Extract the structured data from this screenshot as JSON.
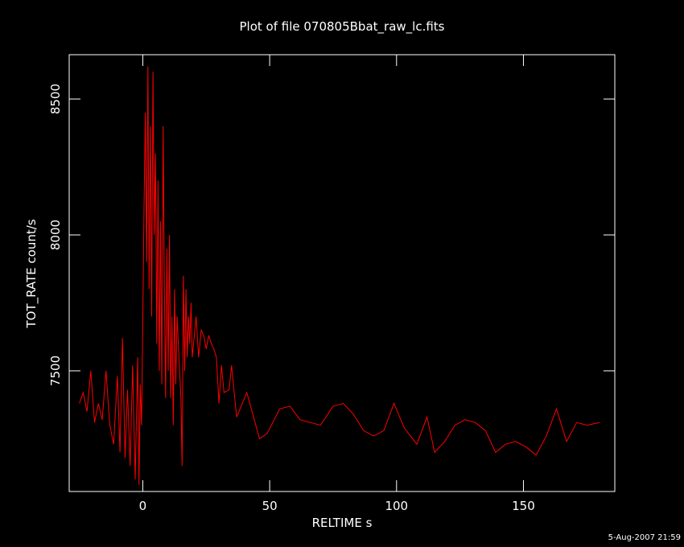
{
  "chart_data": {
    "type": "line",
    "title": "Plot of file 070805Bbat_raw_lc.fits",
    "x_label": "RELTIME  s",
    "y_label": "TOT_RATE  count/s",
    "footer": "5-Aug-2007 21:59",
    "background": "#000000",
    "axis_color": "#ffffff",
    "xlim": [
      -29,
      186
    ],
    "xticks": [
      0,
      50,
      100,
      150
    ],
    "ylim": [
      7056,
      8663
    ],
    "yticks": [
      7500,
      8000,
      8500
    ],
    "x": [
      -25,
      -23.5,
      -22,
      -20.5,
      -19,
      -17.5,
      -16,
      -14.5,
      -13,
      -11.5,
      -10,
      -9,
      -8,
      -7,
      -6,
      -5,
      -4,
      -3,
      -2,
      -1.5,
      -1,
      -0.5,
      0,
      0.5,
      1,
      1.5,
      2,
      2.5,
      3,
      3.5,
      4,
      4.5,
      5,
      5.5,
      6,
      6.5,
      7,
      7.5,
      8,
      8.5,
      9,
      9.5,
      10,
      10.5,
      11,
      11.5,
      12,
      12.5,
      13,
      13.5,
      14,
      15,
      15.5,
      16,
      16.5,
      17,
      17.5,
      18,
      18.5,
      19,
      19.5,
      20,
      21,
      22,
      23,
      24,
      25,
      26,
      27,
      28,
      29,
      30,
      31,
      32,
      34,
      35,
      36,
      37,
      41,
      46,
      49,
      54,
      58,
      62,
      70,
      75,
      79,
      83,
      87,
      91,
      95,
      99,
      103,
      108,
      112,
      115,
      119,
      123,
      127,
      131,
      135,
      139,
      143,
      147,
      151,
      155,
      159,
      163,
      167,
      171,
      175,
      180
    ],
    "series": [
      {
        "name": "TOT_RATE",
        "color": "#ff0000",
        "values": [
          7380,
          7420,
          7350,
          7500,
          7310,
          7380,
          7320,
          7500,
          7300,
          7230,
          7480,
          7200,
          7620,
          7180,
          7430,
          7150,
          7520,
          7100,
          7550,
          7080,
          7450,
          7300,
          7700,
          8100,
          8450,
          7900,
          8620,
          7800,
          8400,
          7700,
          8600,
          8000,
          8300,
          7600,
          8200,
          7500,
          8050,
          7450,
          8400,
          7800,
          7400,
          7950,
          7500,
          8000,
          7400,
          7700,
          7300,
          7800,
          7450,
          7700,
          7600,
          7400,
          7150,
          7850,
          7500,
          7800,
          7550,
          7700,
          7600,
          7750,
          7550,
          7600,
          7700,
          7550,
          7650,
          7630,
          7580,
          7630,
          7600,
          7580,
          7550,
          7380,
          7520,
          7420,
          7430,
          7520,
          7420,
          7330,
          7420,
          7250,
          7270,
          7360,
          7370,
          7320,
          7300,
          7370,
          7380,
          7340,
          7280,
          7260,
          7280,
          7380,
          7290,
          7230,
          7330,
          7200,
          7240,
          7300,
          7320,
          7310,
          7280,
          7200,
          7230,
          7240,
          7220,
          7190,
          7260,
          7360,
          7240,
          7310,
          7300,
          7310
        ]
      }
    ]
  }
}
